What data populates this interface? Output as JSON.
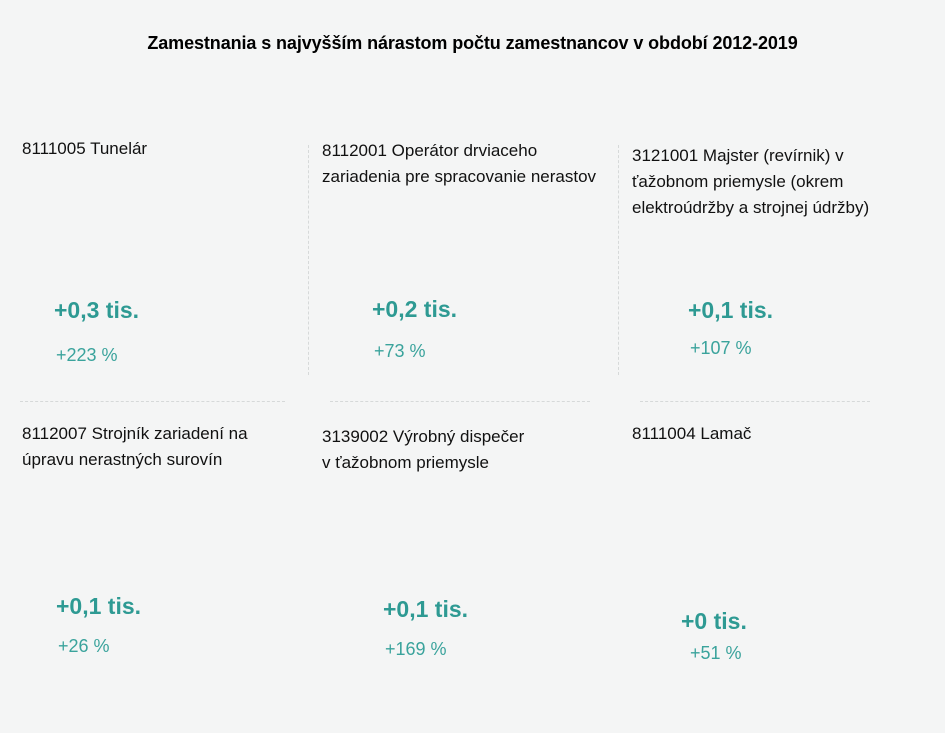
{
  "title": "Zamestnania s najvyšším nárastom počtu zamestnancov v období 2012-2019",
  "colors": {
    "accent": "#2e9a93",
    "text": "#111111",
    "background": "#f4f5f5"
  },
  "cards": [
    {
      "occupation": "8111005  Tunelár",
      "absolute": "+0,3 tis.",
      "percent": "+223 %"
    },
    {
      "occupation": "8112001  Operátor drviaceho zariadenia pre spracovanie nerastov",
      "absolute": "+0,2 tis.",
      "percent": "+73 %"
    },
    {
      "occupation": "3121001  Majster (revírnik) v ťažobnom priemysle (okrem elektroúdržby a strojnej údržby)",
      "absolute": "+0,1 tis.",
      "percent": "+107 %"
    },
    {
      "occupation": "8112007  Strojník zariadení na úpravu nerastných surovín",
      "absolute": "+0,1 tis.",
      "percent": "+26 %"
    },
    {
      "occupation": "3139002  Výrobný dispečer v ťažobnom priemysle",
      "absolute": "+0,1 tis.",
      "percent": "+169 %"
    },
    {
      "occupation": "8111004  Lamač",
      "absolute": "+0 tis.",
      "percent": "+51 %"
    }
  ]
}
